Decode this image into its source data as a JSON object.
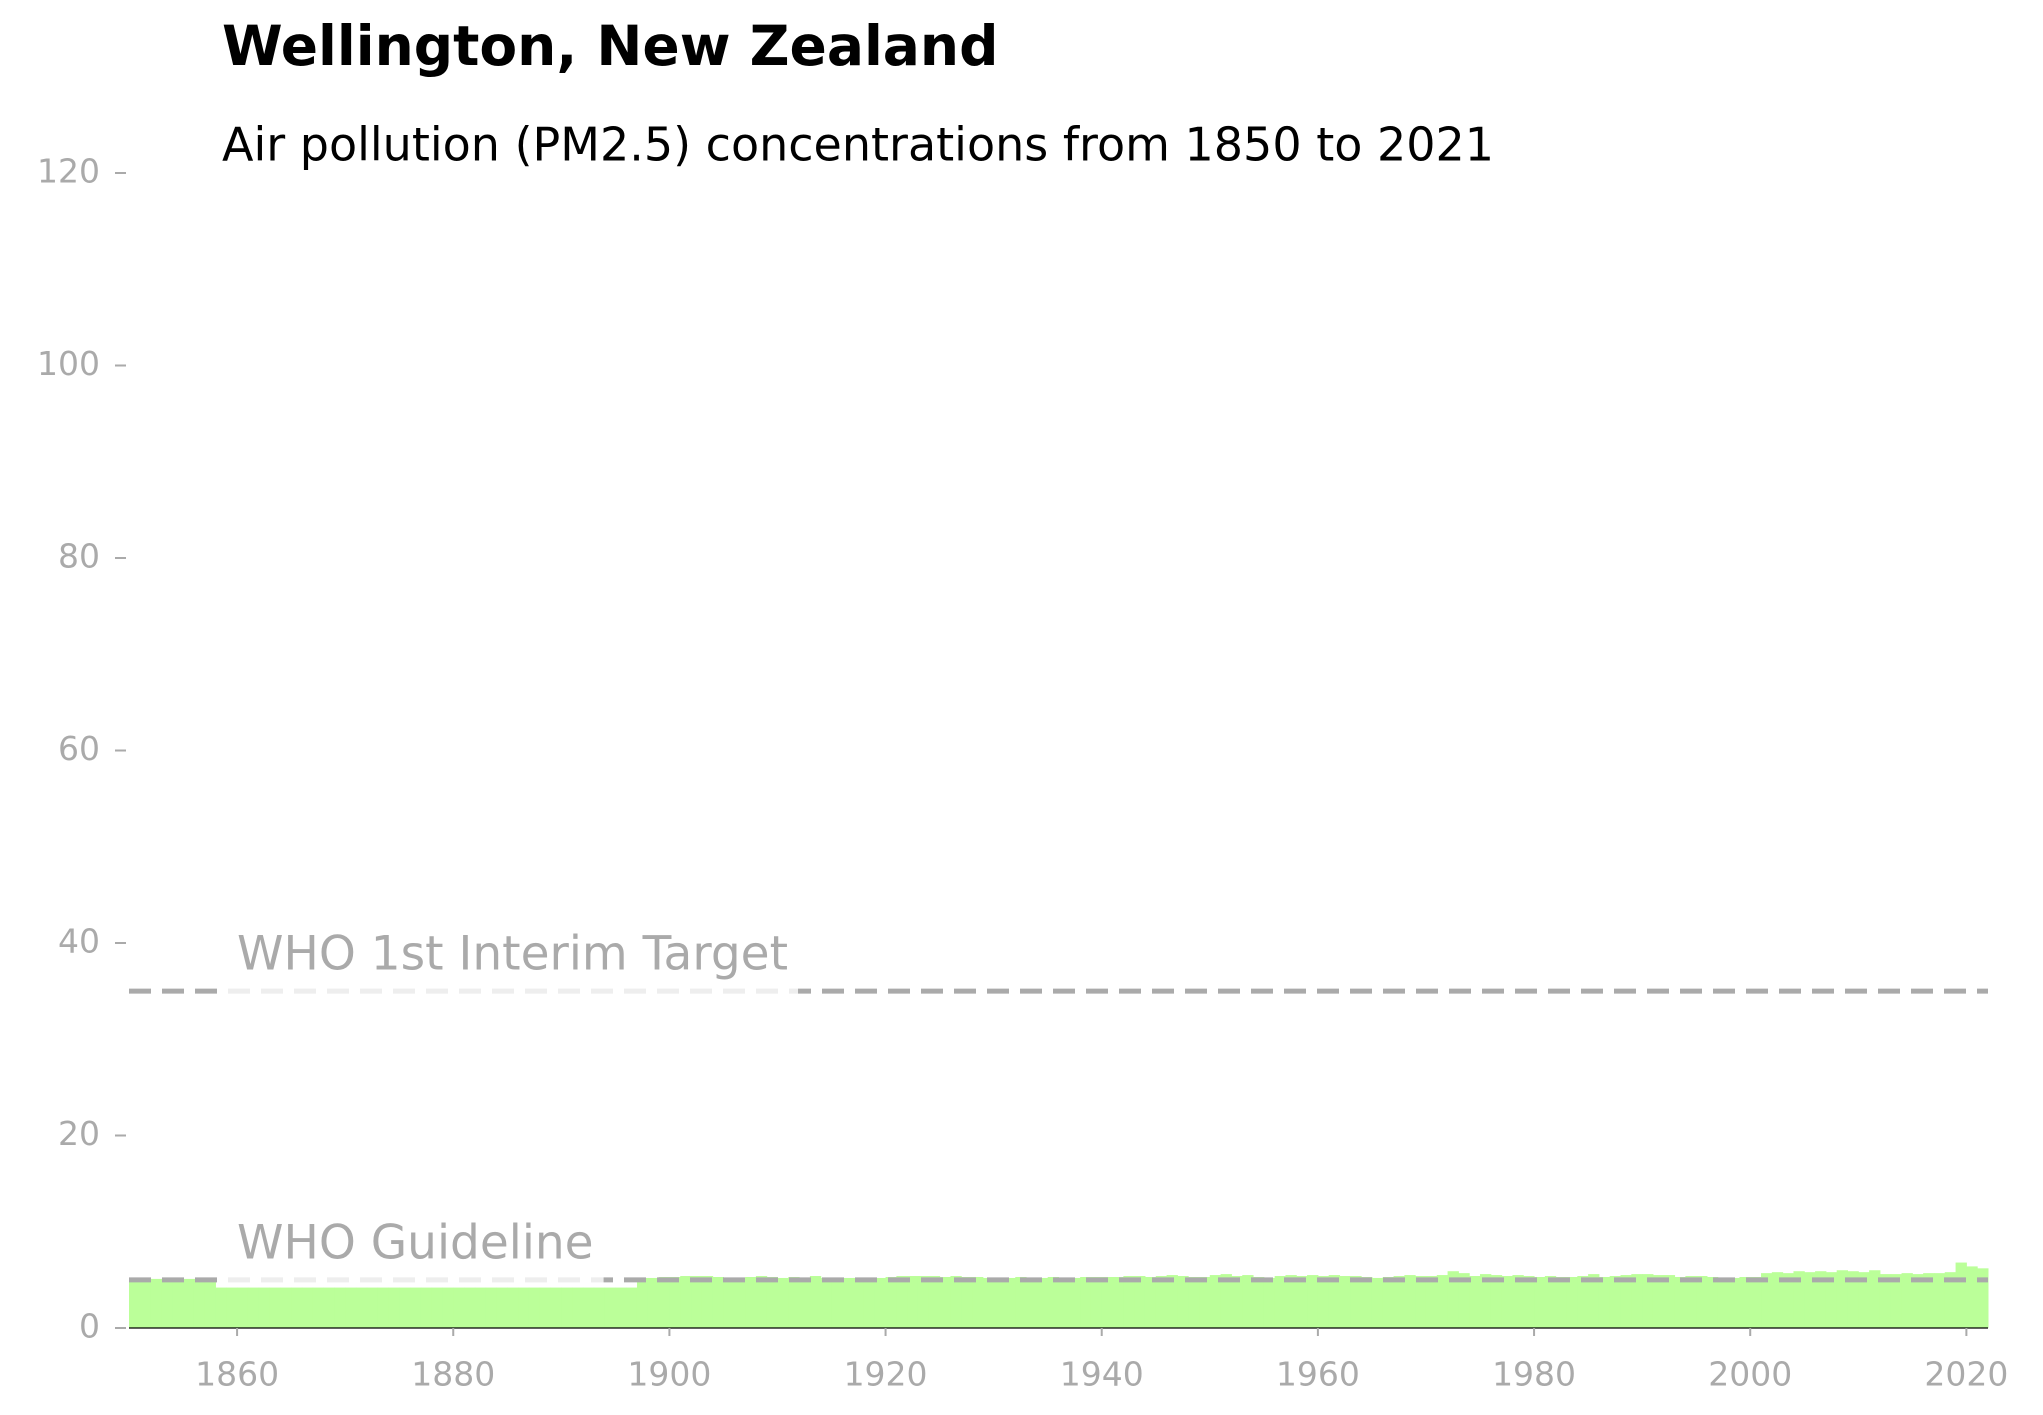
{
  "chart_data": {
    "type": "bar",
    "title": "Wellington, New Zealand",
    "subtitle": "Air pollution (PM2.5) concentrations from 1850 to 2021",
    "x": [
      1850,
      1851,
      1852,
      1853,
      1854,
      1855,
      1856,
      1857,
      1858,
      1859,
      1860,
      1861,
      1862,
      1863,
      1864,
      1865,
      1866,
      1867,
      1868,
      1869,
      1870,
      1871,
      1872,
      1873,
      1874,
      1875,
      1876,
      1877,
      1878,
      1879,
      1880,
      1881,
      1882,
      1883,
      1884,
      1885,
      1886,
      1887,
      1888,
      1889,
      1890,
      1891,
      1892,
      1893,
      1894,
      1895,
      1896,
      1897,
      1898,
      1899,
      1900,
      1901,
      1902,
      1903,
      1904,
      1905,
      1906,
      1907,
      1908,
      1909,
      1910,
      1911,
      1912,
      1913,
      1914,
      1915,
      1916,
      1917,
      1918,
      1919,
      1920,
      1921,
      1922,
      1923,
      1924,
      1925,
      1926,
      1927,
      1928,
      1929,
      1930,
      1931,
      1932,
      1933,
      1934,
      1935,
      1936,
      1937,
      1938,
      1939,
      1940,
      1941,
      1942,
      1943,
      1944,
      1945,
      1946,
      1947,
      1948,
      1949,
      1950,
      1951,
      1952,
      1953,
      1954,
      1955,
      1956,
      1957,
      1958,
      1959,
      1960,
      1961,
      1962,
      1963,
      1964,
      1965,
      1966,
      1967,
      1968,
      1969,
      1970,
      1971,
      1972,
      1973,
      1974,
      1975,
      1976,
      1977,
      1978,
      1979,
      1980,
      1981,
      1982,
      1983,
      1984,
      1985,
      1986,
      1987,
      1988,
      1989,
      1990,
      1991,
      1992,
      1993,
      1994,
      1995,
      1996,
      1997,
      1998,
      1999,
      2000,
      2001,
      2002,
      2003,
      2004,
      2005,
      2006,
      2007,
      2008,
      2009,
      2010,
      2011,
      2012,
      2013,
      2014,
      2015,
      2016,
      2017,
      2018,
      2019,
      2020,
      2021
    ],
    "values": [
      5.1,
      5.1,
      5.1,
      5.1,
      5.1,
      5.1,
      5.1,
      5.1,
      4.2,
      4.2,
      4.2,
      4.2,
      4.2,
      4.2,
      4.2,
      4.2,
      4.2,
      4.2,
      4.2,
      4.2,
      4.2,
      4.2,
      4.2,
      4.2,
      4.2,
      4.2,
      4.2,
      4.2,
      4.2,
      4.2,
      4.2,
      4.2,
      4.2,
      4.2,
      4.2,
      4.2,
      4.2,
      4.2,
      4.2,
      4.2,
      4.2,
      4.2,
      4.2,
      4.2,
      4.2,
      4.2,
      4.2,
      5.2,
      5.2,
      5.3,
      5.3,
      5.4,
      5.4,
      5.4,
      5.3,
      5.2,
      5.2,
      5.3,
      5.4,
      5.3,
      5.2,
      5.3,
      5.2,
      5.4,
      5.2,
      5.1,
      5.2,
      5.2,
      5.1,
      5.2,
      5.3,
      5.4,
      5.4,
      5.4,
      5.4,
      5.3,
      5.4,
      5.3,
      5.3,
      5.2,
      5.2,
      5.2,
      5.3,
      5.2,
      5.2,
      5.3,
      5.2,
      5.2,
      5.3,
      5.3,
      5.3,
      5.3,
      5.4,
      5.4,
      5.3,
      5.4,
      5.5,
      5.4,
      5.3,
      5.3,
      5.5,
      5.6,
      5.4,
      5.5,
      5.3,
      5.2,
      5.4,
      5.5,
      5.4,
      5.5,
      5.4,
      5.5,
      5.4,
      5.4,
      5.3,
      5.2,
      5.3,
      5.4,
      5.5,
      5.4,
      5.4,
      5.5,
      5.9,
      5.7,
      5.4,
      5.6,
      5.5,
      5.4,
      5.5,
      5.4,
      5.3,
      5.4,
      5.3,
      5.3,
      5.4,
      5.6,
      5.3,
      5.4,
      5.5,
      5.6,
      5.6,
      5.5,
      5.5,
      5.3,
      5.4,
      5.4,
      5.3,
      5.2,
      5.2,
      5.3,
      5.3,
      5.7,
      5.8,
      5.7,
      5.9,
      5.8,
      5.9,
      5.8,
      6.0,
      5.9,
      5.8,
      6.0,
      5.6,
      5.6,
      5.7,
      5.6,
      5.7,
      5.7,
      5.8,
      6.8,
      6.4,
      6.2
    ],
    "color": "#bbff99",
    "xlim": [
      1850,
      2022
    ],
    "xticks": [
      1860,
      1880,
      1900,
      1920,
      1940,
      1960,
      1980,
      2000,
      2020
    ],
    "ylim": [
      0,
      120
    ],
    "yticks": [
      0,
      20,
      40,
      60,
      80,
      100,
      120
    ],
    "reference_lines": [
      {
        "value": 35,
        "label": "WHO 1st Interim Target"
      },
      {
        "value": 5,
        "label": "WHO Guideline"
      }
    ],
    "reference_color": "#aaaaaa"
  }
}
